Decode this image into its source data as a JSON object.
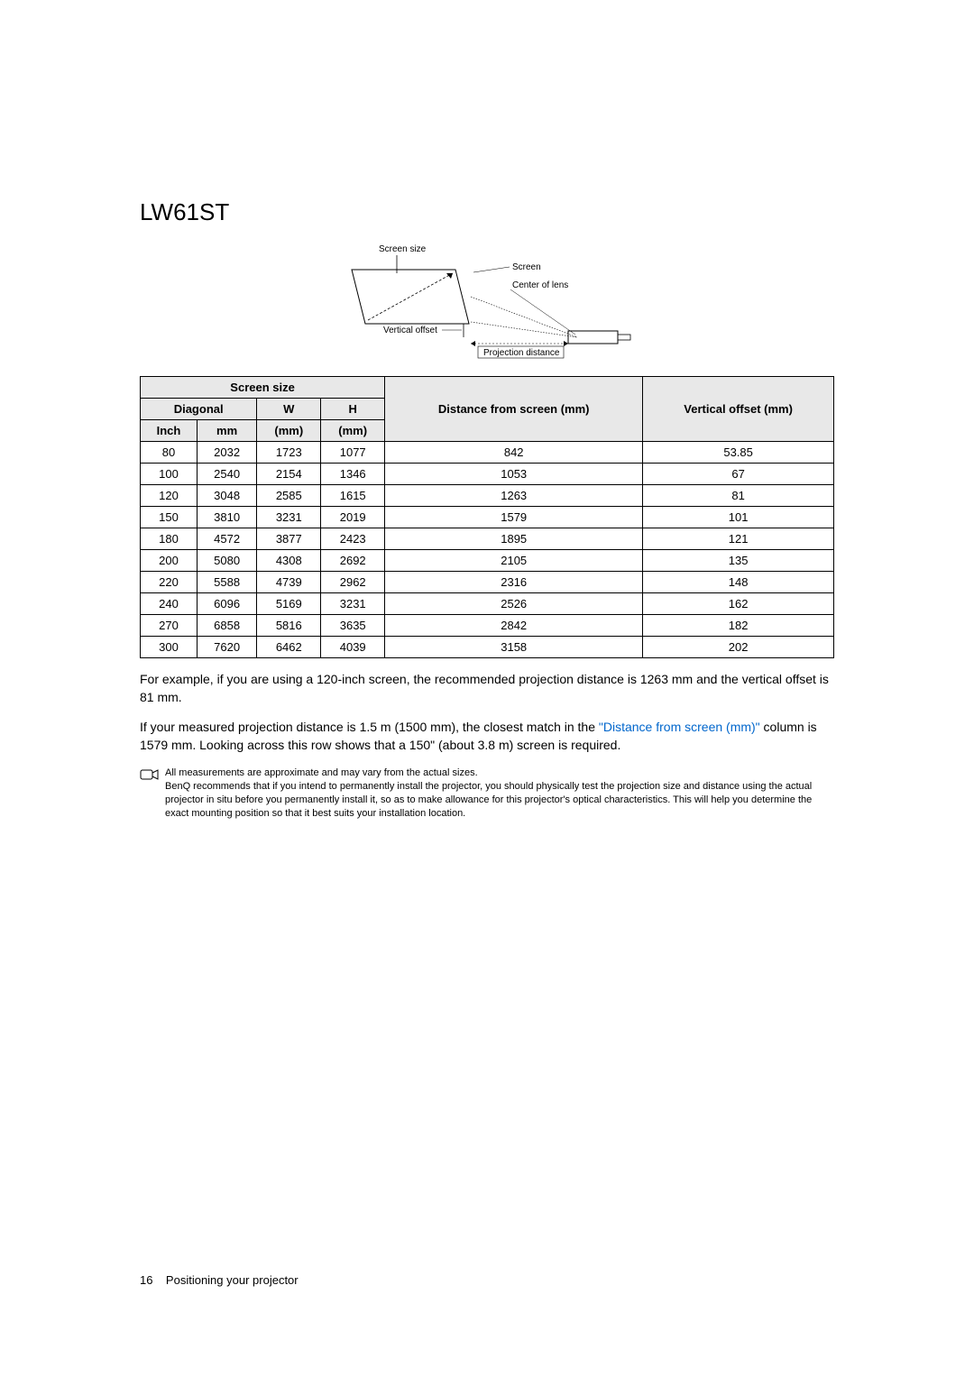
{
  "title": "LW61ST",
  "diagram": {
    "labels": {
      "screen_size": "Screen size",
      "screen": "Screen",
      "center_of_lens": "Center of lens",
      "vertical_offset": "Vertical offset",
      "projection_distance": "Projection distance"
    },
    "colors": {
      "line": "#000000",
      "dashed": "#888888"
    }
  },
  "table": {
    "headers": {
      "screen_size": "Screen size",
      "diagonal": "Diagonal",
      "w": "W",
      "h": "H",
      "inch": "Inch",
      "mm": "mm",
      "w_mm": "(mm)",
      "h_mm": "(mm)",
      "distance": "Distance from screen (mm)",
      "vertical_offset": "Vertical offset (mm)"
    },
    "rows": [
      {
        "inch": "80",
        "mm": "2032",
        "w": "1723",
        "h": "1077",
        "dist": "842",
        "voff": "53.85"
      },
      {
        "inch": "100",
        "mm": "2540",
        "w": "2154",
        "h": "1346",
        "dist": "1053",
        "voff": "67"
      },
      {
        "inch": "120",
        "mm": "3048",
        "w": "2585",
        "h": "1615",
        "dist": "1263",
        "voff": "81"
      },
      {
        "inch": "150",
        "mm": "3810",
        "w": "3231",
        "h": "2019",
        "dist": "1579",
        "voff": "101"
      },
      {
        "inch": "180",
        "mm": "4572",
        "w": "3877",
        "h": "2423",
        "dist": "1895",
        "voff": "121"
      },
      {
        "inch": "200",
        "mm": "5080",
        "w": "4308",
        "h": "2692",
        "dist": "2105",
        "voff": "135"
      },
      {
        "inch": "220",
        "mm": "5588",
        "w": "4739",
        "h": "2962",
        "dist": "2316",
        "voff": "148"
      },
      {
        "inch": "240",
        "mm": "6096",
        "w": "5169",
        "h": "3231",
        "dist": "2526",
        "voff": "162"
      },
      {
        "inch": "270",
        "mm": "6858",
        "w": "5816",
        "h": "3635",
        "dist": "2842",
        "voff": "182"
      },
      {
        "inch": "300",
        "mm": "7620",
        "w": "6462",
        "h": "4039",
        "dist": "3158",
        "voff": "202"
      }
    ],
    "header_bg": "#e8e8e8",
    "border_color": "#000000"
  },
  "para1": "For example, if you are using a 120-inch screen, the recommended projection distance is 1263 mm and the vertical offset is 81 mm.",
  "para2_pre": "If your measured projection distance is 1.5 m (1500 mm), the closest match in the ",
  "para2_link": "\"Distance from screen (mm)\"",
  "para2_post": " column is 1579 mm. Looking across this row shows that a 150\" (about 3.8 m) screen is required.",
  "note_line1": "All measurements are approximate and may vary from the actual sizes.",
  "note_line2": "BenQ recommends that if you intend to permanently install the projector, you should physically test the projection size and distance using the actual projector in situ before you permanently install it, so as to make allowance for this projector's optical characteristics. This will help you determine the exact mounting position so that it best suits your installation location.",
  "footer": {
    "page_num": "16",
    "section": "Positioning your projector"
  },
  "link_color": "#0066cc"
}
